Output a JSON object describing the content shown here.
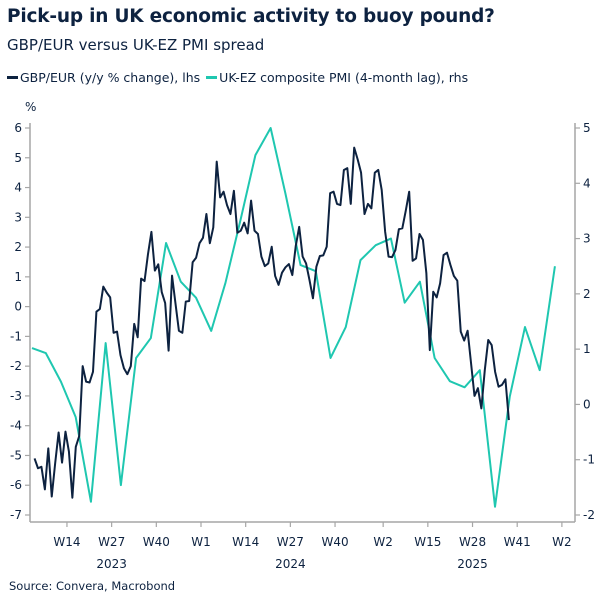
{
  "header": {
    "title": "Pick-up in UK economic activity to buoy pound?",
    "subtitle": "GBP/EUR versus UK-EZ PMI spread"
  },
  "source": "Source: Convera, Macrobond",
  "colors": {
    "gbp": "#0d2240",
    "pmi": "#1fc7b0",
    "axis": "#a6a6a6"
  },
  "chart_data": {
    "type": "line",
    "title": "Pick-up in UK economic activity to buoy pound?",
    "subtitle": "GBP/EUR versus UK-EZ PMI spread",
    "legend_position": "top-left",
    "grid": false,
    "left_axis": {
      "unit_label": "%",
      "range": [
        -7,
        6
      ],
      "ticks": [
        "6",
        "5",
        "4",
        "3",
        "2",
        "1",
        "0",
        "-1",
        "-2",
        "-3",
        "-4",
        "-5",
        "-6",
        "-7"
      ]
    },
    "right_axis": {
      "range": [
        -2,
        5
      ],
      "ticks": [
        "5",
        "4",
        "3",
        "2",
        "1",
        "0",
        "-1",
        "-2"
      ]
    },
    "x_axis": {
      "ticks": [
        {
          "label": "W14",
          "date": "2023-04-03"
        },
        {
          "label": "W27",
          "date": "2023-07-03"
        },
        {
          "label": "W40",
          "date": "2023-10-02"
        },
        {
          "label": "W1",
          "date": "2024-01-01"
        },
        {
          "label": "W14",
          "date": "2024-04-01"
        },
        {
          "label": "W27",
          "date": "2024-07-01"
        },
        {
          "label": "W40",
          "date": "2024-09-30"
        },
        {
          "label": "W2",
          "date": "2025-01-06"
        },
        {
          "label": "W15",
          "date": "2025-04-07"
        },
        {
          "label": "W28",
          "date": "2025-07-07"
        },
        {
          "label": "W41",
          "date": "2025-10-06"
        },
        {
          "label": "W2",
          "date": "2026-01-05"
        }
      ],
      "years": [
        {
          "label": "2023",
          "date": "2023-07-03"
        },
        {
          "label": "2024",
          "date": "2024-07-01"
        },
        {
          "label": "2025",
          "date": "2025-07-07"
        }
      ]
    },
    "series": [
      {
        "name": "GBP/EUR (y/y % change), lhs",
        "axis": "left",
        "start": "2023-01-27",
        "frequency": "weekly",
        "values": [
          -5.1,
          -5.43,
          -5.38,
          -6.14,
          -4.76,
          -6.38,
          -5.26,
          -4.23,
          -5.24,
          -4.2,
          -4.87,
          -6.42,
          -4.71,
          -4.35,
          -2.0,
          -2.52,
          -2.55,
          -2.19,
          -0.17,
          -0.08,
          0.67,
          0.47,
          0.31,
          -0.88,
          -0.84,
          -1.63,
          -2.07,
          -2.27,
          -2.0,
          -0.58,
          -1.03,
          0.94,
          0.86,
          1.76,
          2.51,
          1.21,
          1.42,
          0.49,
          0.12,
          -1.48,
          1.04,
          0.11,
          -0.81,
          -0.88,
          0.17,
          0.19,
          1.49,
          1.64,
          2.13,
          2.31,
          3.11,
          2.13,
          2.66,
          4.87,
          3.67,
          3.86,
          3.41,
          3.11,
          3.89,
          2.48,
          2.55,
          2.82,
          2.46,
          3.56,
          2.55,
          2.44,
          1.68,
          1.36,
          1.45,
          2.01,
          1.03,
          0.73,
          1.14,
          1.32,
          1.43,
          1.06,
          2.04,
          2.68,
          1.68,
          1.45,
          0.89,
          0.28,
          1.34,
          1.7,
          1.72,
          2.01,
          3.81,
          3.86,
          3.45,
          3.41,
          4.59,
          4.65,
          3.45,
          5.34,
          4.95,
          4.5,
          3.11,
          3.45,
          3.3,
          4.5,
          4.59,
          3.92,
          2.52,
          1.68,
          1.66,
          1.9,
          2.6,
          2.63,
          3.22,
          3.86,
          1.54,
          1.62,
          2.44,
          2.24,
          1.12,
          -1.46,
          0.5,
          0.31,
          0.78,
          1.73,
          1.81,
          1.4,
          1.03,
          0.87,
          -0.84,
          -1.14,
          -0.81,
          -1.9,
          -3.0,
          -2.74,
          -3.42,
          -2.13,
          -1.12,
          -1.29,
          -2.19,
          -2.69,
          -2.63,
          -2.44,
          -3.81
        ]
      },
      {
        "name": "UK-EZ composite PMI (4-month lag), rhs",
        "axis": "right",
        "frequency": "monthly",
        "x": [
          "2023-02",
          "2023-03",
          "2023-04",
          "2023-05",
          "2023-06",
          "2023-07",
          "2023-08",
          "2023-09",
          "2023-10",
          "2023-11",
          "2023-12",
          "2024-01",
          "2024-02",
          "2024-03",
          "2024-04",
          "2024-05",
          "2024-06",
          "2024-07",
          "2024-08",
          "2024-09",
          "2024-10",
          "2024-11",
          "2024-12",
          "2025-01",
          "2025-02",
          "2025-03",
          "2025-04",
          "2025-05",
          "2025-06",
          "2025-07",
          "2025-08",
          "2025-09",
          "2025-10",
          "2025-11",
          "2025-12",
          "2026-01"
        ],
        "values": [
          1.02,
          0.93,
          0.41,
          -0.23,
          -1.76,
          1.11,
          -1.46,
          0.84,
          1.2,
          2.92,
          2.22,
          1.93,
          1.33,
          2.2,
          3.35,
          4.51,
          5.0,
          3.82,
          2.52,
          2.41,
          0.84,
          1.4,
          2.61,
          2.88,
          3.0,
          1.84,
          2.22,
          0.84,
          0.42,
          0.31,
          0.62,
          -1.85,
          0.14,
          1.4,
          0.62,
          2.5
        ]
      }
    ]
  }
}
